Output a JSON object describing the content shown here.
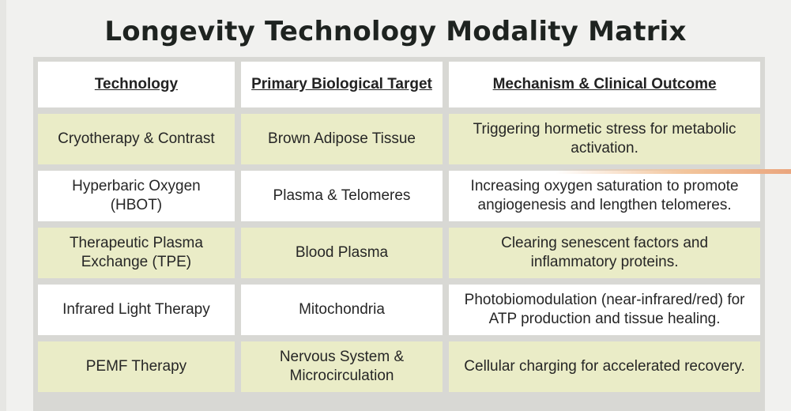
{
  "title": "Longevity Technology Modality Matrix",
  "table": {
    "headers": [
      "Technology",
      "Primary Biological Target",
      "Mechanism & Clinical Outcome"
    ],
    "rows": [
      [
        "Cryotherapy & Contrast",
        "Brown Adipose Tissue",
        "Triggering hormetic stress for metabolic activation."
      ],
      [
        "Hyperbaric Oxygen (HBOT)",
        "Plasma & Telomeres",
        "Increasing oxygen saturation to promote angiogenesis and lengthen telomeres."
      ],
      [
        "Therapeutic Plasma Exchange (TPE)",
        "Blood Plasma",
        "Clearing senescent factors and inflammatory proteins."
      ],
      [
        "Infrared Light Therapy",
        "Mitochondria",
        "Photobiomodulation (near-infrared/red) for ATP production and tissue healing."
      ],
      [
        "PEMF Therapy",
        "Nervous System & Microcirculation",
        "Cellular charging for accelerated recovery."
      ]
    ]
  },
  "colors": {
    "header_bg": "#ffffff",
    "row_tan": "#eaecc7",
    "row_white": "#ffffff",
    "frame": "#d8d8d4",
    "accent": "#eaa57d"
  }
}
